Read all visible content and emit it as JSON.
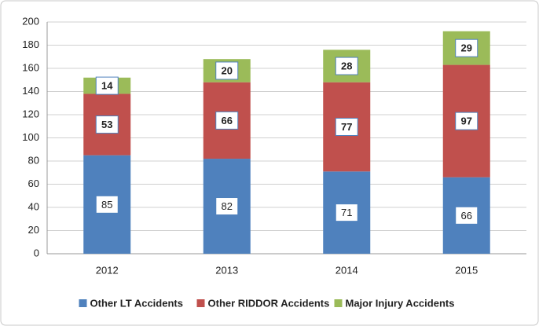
{
  "chart_data": {
    "type": "stacked_bar",
    "categories": [
      "2012",
      "2013",
      "2014",
      "2015"
    ],
    "series": [
      {
        "name": "Other LT Accidents",
        "color": "#4f81bd",
        "values": [
          85,
          82,
          71,
          66
        ]
      },
      {
        "name": "Other RIDDOR Accidents",
        "color": "#c0504d",
        "values": [
          53,
          66,
          77,
          97
        ]
      },
      {
        "name": "Major Injury Accidents",
        "color": "#9bbb59",
        "values": [
          14,
          20,
          28,
          29
        ]
      }
    ],
    "ylim": [
      0,
      200
    ],
    "yticks": [
      0,
      20,
      40,
      60,
      80,
      100,
      120,
      140,
      160,
      180,
      200
    ],
    "grid": true,
    "legend": "bottom"
  }
}
